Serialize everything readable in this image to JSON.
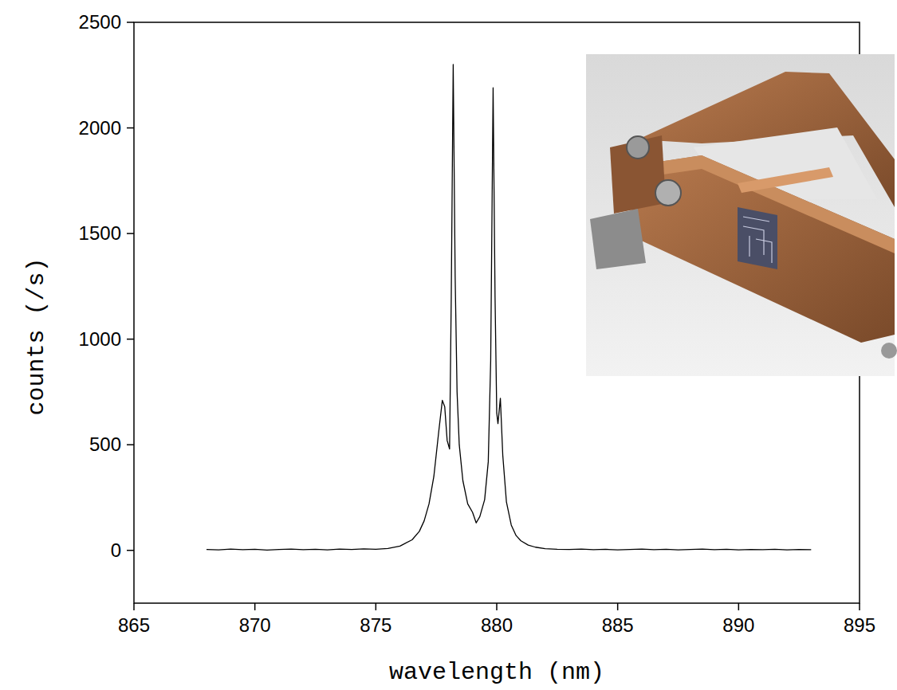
{
  "chart_data": {
    "type": "line",
    "x_label": "wavelength (nm)",
    "y_label": "counts (/s)",
    "xlim": [
      865,
      895
    ],
    "xticks": [
      865,
      870,
      875,
      880,
      885,
      890,
      895
    ],
    "ylim": [
      -250,
      2500
    ],
    "yticks": [
      0,
      500,
      1000,
      1500,
      2000,
      2500
    ],
    "grid": false,
    "series": [
      {
        "color": "#000000",
        "x": [
          868,
          868.5,
          869,
          869.5,
          870,
          870.5,
          871,
          871.5,
          872,
          872.5,
          873,
          873.5,
          874,
          874.5,
          875,
          875.5,
          876,
          876.5,
          876.8,
          877.0,
          877.2,
          877.4,
          877.6,
          877.75,
          877.85,
          877.95,
          878.05,
          878.12,
          878.2,
          878.28,
          878.36,
          878.45,
          878.6,
          878.8,
          879.0,
          879.15,
          879.3,
          879.5,
          879.65,
          879.75,
          879.85,
          879.93,
          880.0,
          880.05,
          880.15,
          880.25,
          880.4,
          880.6,
          880.8,
          881.0,
          881.3,
          881.6,
          882,
          882.5,
          883,
          883.5,
          884,
          884.5,
          885,
          885.5,
          886,
          886.5,
          887,
          887.5,
          888,
          888.5,
          889,
          889.5,
          890,
          890.5,
          891,
          891.5,
          892,
          892.5,
          893
        ],
        "values": [
          4,
          2,
          6,
          3,
          5,
          1,
          4,
          6,
          3,
          5,
          2,
          6,
          4,
          7,
          5,
          9,
          20,
          50,
          90,
          140,
          220,
          350,
          560,
          710,
          680,
          520,
          480,
          1200,
          2300,
          1300,
          750,
          500,
          330,
          220,
          180,
          130,
          160,
          240,
          420,
          900,
          2190,
          1200,
          650,
          600,
          720,
          450,
          230,
          120,
          70,
          45,
          25,
          15,
          8,
          5,
          4,
          6,
          3,
          5,
          2,
          4,
          6,
          3,
          5,
          2,
          4,
          6,
          3,
          5,
          2,
          4,
          3,
          5,
          2,
          4,
          3
        ]
      }
    ]
  }
}
